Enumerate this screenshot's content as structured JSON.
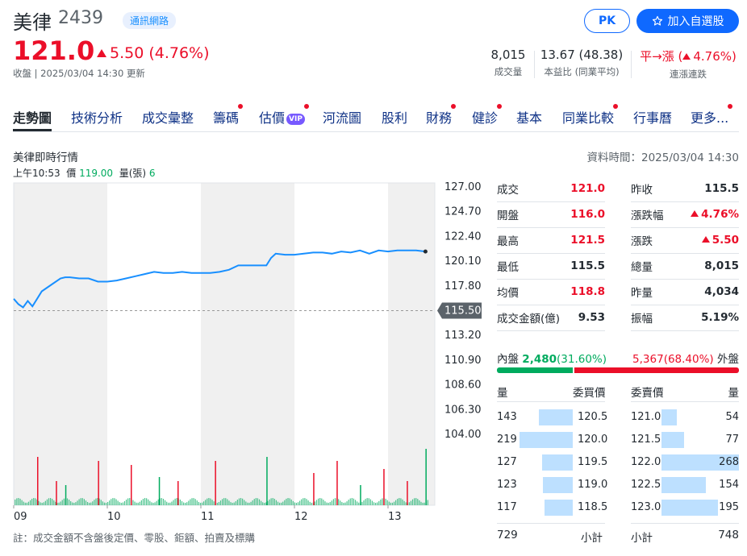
{
  "header": {
    "name": "美律",
    "code": "2439",
    "industry": "通訊網路",
    "pk_label": "PK",
    "add_label": "加入自選股",
    "price": "121.0",
    "change": "5.50 (4.76%)",
    "status": "收盤 | 2025/03/04 14:30 更新"
  },
  "stats": [
    {
      "value": "8,015",
      "label": "成交量"
    },
    {
      "value": "13.67 (48.38)",
      "label": "本益比 (同業平均)"
    },
    {
      "value": "平→漲 (",
      "value_pct": "4.76%)",
      "label": "連漲連跌"
    }
  ],
  "tabs": [
    {
      "label": "走勢圖",
      "active": true,
      "dot": false
    },
    {
      "label": "技術分析",
      "dot": false
    },
    {
      "label": "成交彙整",
      "dot": false
    },
    {
      "label": "籌碼",
      "dot": true
    },
    {
      "label": "估價",
      "dot": true,
      "vip": "VIP"
    },
    {
      "label": "河流圖",
      "dot": false
    },
    {
      "label": "股利",
      "dot": false
    },
    {
      "label": "財務",
      "dot": true
    },
    {
      "label": "健診",
      "dot": true
    },
    {
      "label": "基本",
      "dot": false
    },
    {
      "label": "同業比較",
      "dot": true
    },
    {
      "label": "行事曆",
      "dot": false
    },
    {
      "label": "更多...",
      "dot": true
    }
  ],
  "section_title": "美律即時行情",
  "data_time": "資料時間：2025/03/04 14:30",
  "hover": {
    "time": "上午10:53",
    "price_label": "價",
    "price": "119.00",
    "vol_label": "量(張)",
    "vol": "6"
  },
  "chart_data": {
    "type": "line",
    "x_ticks": [
      "09",
      "10",
      "11",
      "12",
      "13"
    ],
    "y_ticks": [
      "127.00",
      "124.70",
      "122.40",
      "120.10",
      "117.80",
      "115.50",
      "113.20",
      "110.90",
      "108.60",
      "106.30",
      "104.00"
    ],
    "ylim": [
      104.0,
      127.0
    ],
    "reference_price": "115.50",
    "series": [
      {
        "x": [
          9.0,
          9.05,
          9.1,
          9.15,
          9.2,
          9.3,
          9.4,
          9.5,
          9.55,
          9.6,
          9.7,
          9.8,
          9.9,
          10.0,
          10.1,
          10.2,
          10.3,
          10.4,
          10.5,
          10.6,
          10.7,
          10.8,
          10.9,
          11.0,
          11.1,
          11.2,
          11.3,
          11.4,
          11.5,
          11.6,
          11.7,
          11.75,
          11.8,
          11.9,
          12.0,
          12.1,
          12.2,
          12.3,
          12.4,
          12.5,
          12.6,
          12.7,
          12.8,
          12.9,
          13.0,
          13.1,
          13.2,
          13.3,
          13.4
        ],
        "values": [
          116.6,
          116.1,
          115.8,
          116.4,
          115.9,
          117.3,
          117.9,
          118.5,
          118.6,
          118.6,
          118.5,
          118.5,
          118.2,
          118.2,
          118.3,
          118.5,
          118.7,
          118.9,
          119.1,
          119.0,
          119.0,
          119.1,
          119.0,
          119.0,
          119.0,
          119.1,
          119.3,
          119.7,
          119.7,
          119.7,
          119.7,
          120.4,
          120.8,
          120.7,
          120.7,
          120.8,
          120.9,
          120.9,
          120.8,
          121.0,
          120.9,
          121.1,
          120.8,
          121.1,
          121.0,
          121.1,
          121.1,
          121.1,
          121.0
        ]
      }
    ],
    "volume_series": {
      "x": [
        9.25,
        9.45,
        9.55,
        9.9,
        10.25,
        10.55,
        10.75,
        11.15,
        11.7,
        12.2,
        12.45,
        12.7,
        12.95,
        13.2,
        13.4
      ],
      "values": [
        60,
        30,
        25,
        55,
        50,
        35,
        30,
        55,
        60,
        40,
        55,
        25,
        45,
        30,
        70
      ]
    }
  },
  "quote": {
    "left": [
      {
        "label": "成交",
        "value": "121.0",
        "color": "up"
      },
      {
        "label": "開盤",
        "value": "116.0",
        "color": "up"
      },
      {
        "label": "最高",
        "value": "121.5",
        "color": "up"
      },
      {
        "label": "最低",
        "value": "115.5",
        "color": "none"
      },
      {
        "label": "均價",
        "value": "118.8",
        "color": "up"
      },
      {
        "label": "成交金額(億)",
        "value": "9.53",
        "color": "none"
      }
    ],
    "right": [
      {
        "label": "昨收",
        "value": "115.5",
        "color": "none"
      },
      {
        "label": "漲跌幅",
        "value": "4.76%",
        "color": "up",
        "tri": true
      },
      {
        "label": "漲跌",
        "value": "5.50",
        "color": "up",
        "tri": true
      },
      {
        "label": "總量",
        "value": "8,015",
        "color": "none"
      },
      {
        "label": "昨量",
        "value": "4,034",
        "color": "none"
      },
      {
        "label": "振幅",
        "value": "5.19%",
        "color": "none"
      }
    ]
  },
  "inner_outer": {
    "inner_label": "內盤",
    "inner_value": "2,480",
    "inner_pct": "(31.60%)",
    "outer_value": "5,367",
    "outer_pct": "(68.40%)",
    "outer_label": "外盤",
    "inner_fraction": 0.316
  },
  "order_book": {
    "headers": {
      "bid_vol": "量",
      "bid_price": "委買價",
      "ask_price": "委賣價",
      "ask_vol": "量"
    },
    "bids": [
      {
        "vol": "143",
        "price": "120.5",
        "fraction": 0.53
      },
      {
        "vol": "219",
        "price": "120.0",
        "fraction": 0.82
      },
      {
        "vol": "127",
        "price": "119.5",
        "fraction": 0.47
      },
      {
        "vol": "123",
        "price": "119.0",
        "fraction": 0.46
      },
      {
        "vol": "117",
        "price": "118.5",
        "fraction": 0.44
      }
    ],
    "asks": [
      {
        "price": "121.0",
        "vol": "54",
        "fraction": 0.2
      },
      {
        "price": "121.5",
        "vol": "77",
        "fraction": 0.29
      },
      {
        "price": "122.0",
        "vol": "268",
        "fraction": 1.0
      },
      {
        "price": "122.5",
        "vol": "154",
        "fraction": 0.57
      },
      {
        "price": "123.0",
        "vol": "195",
        "fraction": 0.73
      }
    ],
    "bid_total": "729",
    "bid_total_label": "小計",
    "ask_total_label": "小計",
    "ask_total": "748"
  },
  "note": "註：成交金額不含盤後定價、零股、鉅額、拍賣及標購"
}
